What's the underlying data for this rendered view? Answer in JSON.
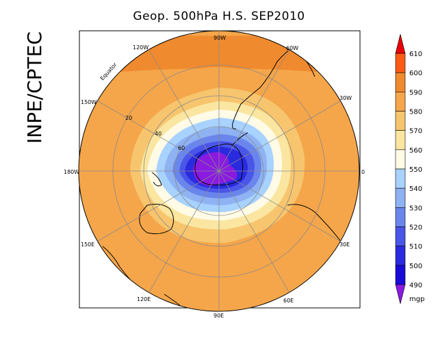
{
  "title": "Geop. 500hPa H.S. SEP2010",
  "side_label": "INPE/CPTEC",
  "colorbar": {
    "levels": [
      "610",
      "600",
      "590",
      "580",
      "570",
      "560",
      "550",
      "540",
      "530",
      "520",
      "510",
      "500",
      "490"
    ],
    "unit": "mgp",
    "colors": [
      "#e8000a",
      "#ff5a14",
      "#f08a2e",
      "#f5a64a",
      "#f7c56e",
      "#fae6a0",
      "#fffbe6",
      "#a8d2ff",
      "#8eb2f2",
      "#6a86ec",
      "#4a56e8",
      "#2a2ae0",
      "#1a0ad8",
      "#8a1ae0"
    ]
  },
  "map": {
    "meridian_labels": [
      "90W",
      "60W",
      "30W",
      "0",
      "30E",
      "60E",
      "90E",
      "120E",
      "150E",
      "180W",
      "150W",
      "120W"
    ],
    "parallel_labels": [
      "Equator",
      "20",
      "40",
      "60"
    ],
    "rings": [
      {
        "level": "580",
        "color": "#f5a64a"
      },
      {
        "level": "570",
        "color": "#f7c56e"
      },
      {
        "level": "560",
        "color": "#fae6a0"
      },
      {
        "level": "550",
        "color": "#fffbe6"
      },
      {
        "level": "540",
        "color": "#a8d2ff"
      },
      {
        "level": "530",
        "color": "#8eb2f2"
      },
      {
        "level": "520",
        "color": "#6a86ec"
      },
      {
        "level": "510",
        "color": "#4a56e8"
      },
      {
        "level": "500",
        "color": "#2a2ae0"
      },
      {
        "level": "490",
        "color": "#8a1ae0"
      }
    ],
    "outer_color": "#f5a64a",
    "tropics_color": "#f08a2e"
  }
}
